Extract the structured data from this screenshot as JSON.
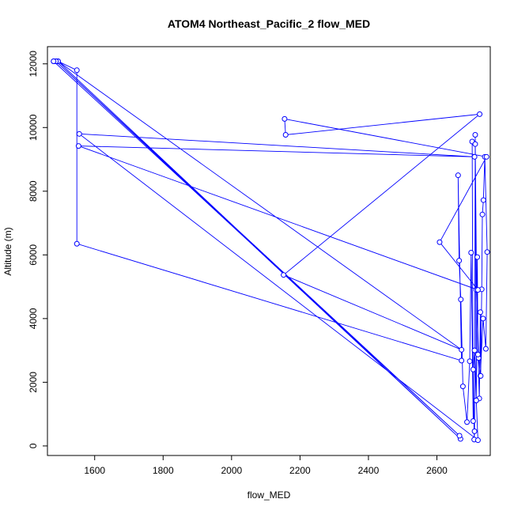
{
  "chart_data": {
    "type": "line",
    "title": "ATOM4 Northeast_Pacific_2 flow_MED",
    "xlabel": "flow_MED",
    "ylabel": "Altitude (m)",
    "xlim": [
      1462,
      2756
    ],
    "ylim": [
      -300,
      12540
    ],
    "xticks": [
      1600,
      1800,
      2000,
      2200,
      2400,
      2600
    ],
    "yticks": [
      0,
      2000,
      4000,
      6000,
      8000,
      10000,
      12000
    ],
    "grid": false,
    "line_color": "#0000ff",
    "marker": "open-circle",
    "series": [
      {
        "x": [
          1480,
          1487,
          1493,
          1548,
          1548,
          2672,
          2662,
          2665,
          2670,
          2676,
          2688,
          2696,
          2700,
          2706,
          2703,
          2712,
          2716,
          2722,
          2727,
          2735,
          2743,
          2747,
          2740,
          2736,
          2733,
          2731,
          2728,
          2727,
          2724,
          2720,
          2718,
          2715,
          2712,
          2710,
          2709,
          2706,
          2710,
          2715,
          2720,
          1555,
          2710,
          1553,
          2720,
          2608,
          2745,
          2155,
          2158,
          2725,
          2152,
          2672,
          1493,
          2669,
          1487,
          2666,
          1480
        ],
        "y": [
          12080,
          12080,
          12080,
          11800,
          6350,
          2680,
          8500,
          5820,
          4600,
          1870,
          750,
          2660,
          6070,
          780,
          9560,
          9480,
          4900,
          2760,
          2200,
          4000,
          3050,
          6090,
          9080,
          7720,
          7270,
          4920,
          2200,
          4200,
          1490,
          2870,
          5930,
          1430,
          9770,
          460,
          200,
          2400,
          3000,
          1430,
          180,
          9800,
          9080,
          9420,
          4900,
          6400,
          9080,
          10270,
          9770,
          10420,
          5370,
          3020,
          12080,
          220,
          12080,
          320,
          12080
        ]
      }
    ]
  }
}
